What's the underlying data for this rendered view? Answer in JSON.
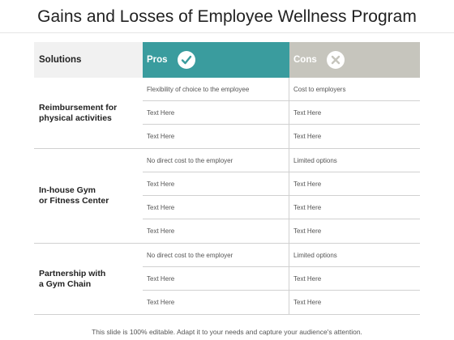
{
  "title": "Gains and Losses of Employee Wellness Program",
  "header": {
    "solutions_label": "Solutions",
    "pros_label": "Pros",
    "cons_label": "Cons",
    "pros_icon": "checkmark-circle-icon",
    "cons_icon": "x-circle-icon"
  },
  "colors": {
    "pros_header": "#3a9c9e",
    "cons_header": "#c6c5bd",
    "solutions_header": "#f1f1f1"
  },
  "groups": [
    {
      "label_lines": [
        "Reimbursement for",
        "physical activities"
      ],
      "rows": [
        {
          "pro": "Flexibility  of choice to the employee",
          "con": "Cost to employers"
        },
        {
          "pro": "Text Here",
          "con": "Text Here"
        },
        {
          "pro": "Text Here",
          "con": "Text Here"
        }
      ]
    },
    {
      "label_lines": [
        "In-house Gym",
        "or Fitness Center"
      ],
      "rows": [
        {
          "pro": "No direct cost to the employer",
          "con": "Limited options"
        },
        {
          "pro": "Text Here",
          "con": "Text Here"
        },
        {
          "pro": "Text Here",
          "con": "Text Here"
        },
        {
          "pro": "Text Here",
          "con": "Text Here"
        }
      ]
    },
    {
      "label_lines": [
        "Partnership with",
        "a Gym Chain"
      ],
      "rows": [
        {
          "pro": "No direct cost to the employer",
          "con": "Limited options"
        },
        {
          "pro": "Text Here",
          "con": "Text Here"
        },
        {
          "pro": "Text Here",
          "con": "Text Here"
        }
      ]
    }
  ],
  "footer": "This slide is 100% editable. Adapt it to your needs and capture your audience's attention."
}
